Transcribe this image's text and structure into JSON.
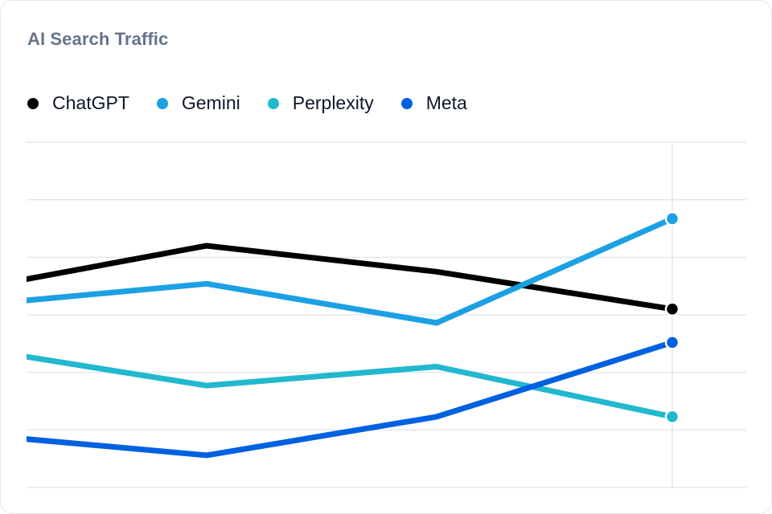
{
  "card": {
    "title": "AI Search Traffic"
  },
  "legend": [
    {
      "label": "ChatGPT",
      "color": "#000000"
    },
    {
      "label": "Gemini",
      "color": "#1ca0e4"
    },
    {
      "label": "Perplexity",
      "color": "#22b8cf"
    },
    {
      "label": "Meta",
      "color": "#0061e0"
    }
  ],
  "chart_data": {
    "type": "line",
    "title": "AI Search Traffic",
    "xlabel": "",
    "ylabel": "",
    "x": [
      1,
      2,
      3,
      4
    ],
    "ylim": [
      0,
      6
    ],
    "grid": true,
    "legend_position": "top-left",
    "series": [
      {
        "name": "ChatGPT",
        "color": "#000000",
        "values": [
          3.46,
          4.2,
          3.75,
          3.1
        ]
      },
      {
        "name": "Gemini",
        "color": "#1ca0e4",
        "values": [
          3.17,
          3.54,
          2.86,
          4.67
        ]
      },
      {
        "name": "Perplexity",
        "color": "#22b8cf",
        "values": [
          2.41,
          1.77,
          2.1,
          1.23
        ]
      },
      {
        "name": "Meta",
        "color": "#0061e0",
        "values": [
          0.92,
          0.56,
          1.23,
          2.52
        ]
      }
    ]
  }
}
